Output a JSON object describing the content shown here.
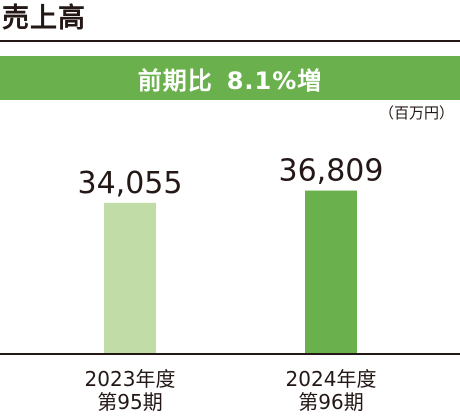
{
  "chart_data": {
    "type": "bar",
    "title": "売上高",
    "subtitle": "前期比 8.1%増",
    "subtitle_parts": [
      "前期比",
      "8.1%増"
    ],
    "unit": "（百万円）",
    "categories": [
      {
        "year": "2023年度",
        "period": "第95期"
      },
      {
        "year": "2024年度",
        "period": "第96期"
      }
    ],
    "values": [
      34055,
      36809
    ],
    "value_labels": [
      "34,055",
      "36,809"
    ],
    "colors": [
      "#c2dca8",
      "#6ab04c"
    ],
    "accent_color": "#6ab04c",
    "text_color": "#231815",
    "ylim": [
      0,
      45500
    ],
    "grid": false,
    "legend": "none"
  }
}
